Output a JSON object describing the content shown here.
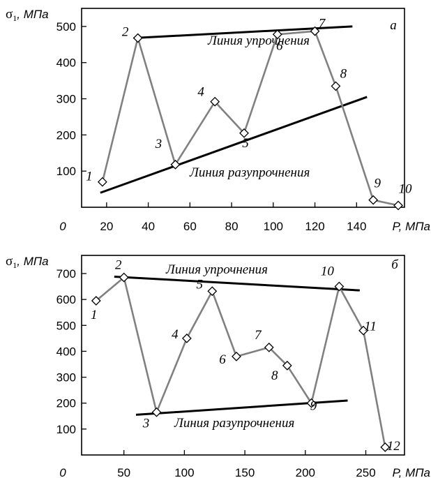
{
  "chart_data": [
    {
      "type": "line",
      "panel_letter": "а",
      "ylabel_symbol": "σ",
      "ylabel_sub": "1",
      "ylabel_unit": ", МПа",
      "xlabel": "P, МПа",
      "origin_label": "0",
      "xlim": [
        8,
        163
      ],
      "ylim": [
        0,
        550
      ],
      "xticks": [
        20,
        40,
        60,
        80,
        100,
        120,
        140
      ],
      "yticks": [
        100,
        200,
        300,
        400,
        500
      ],
      "series": [
        {
          "points": [
            {
              "x": 18,
              "y": 70,
              "label": "1"
            },
            {
              "x": 35,
              "y": 468,
              "label": "2"
            },
            {
              "x": 53,
              "y": 118,
              "label": "3"
            },
            {
              "x": 72,
              "y": 292,
              "label": "4"
            },
            {
              "x": 86,
              "y": 205,
              "label": "5"
            },
            {
              "x": 102,
              "y": 478,
              "label": "6"
            },
            {
              "x": 120,
              "y": 487,
              "label": "7"
            },
            {
              "x": 130,
              "y": 335,
              "label": "8"
            },
            {
              "x": 148,
              "y": 20,
              "label": "9"
            },
            {
              "x": 160,
              "y": 5,
              "label": "10"
            }
          ]
        }
      ],
      "trend_lines": [
        {
          "label": "Линия упрочнения",
          "x1": 33,
          "y1": 468,
          "x2": 138,
          "y2": 500
        },
        {
          "label": "Линия разупрочнения",
          "x1": 17,
          "y1": 40,
          "x2": 145,
          "y2": 305
        }
      ]
    },
    {
      "type": "line",
      "panel_letter": "б",
      "ylabel_symbol": "σ",
      "ylabel_sub": "1",
      "ylabel_unit": ", МПа",
      "xlabel": "P, МПа",
      "origin_label": "0",
      "xlim": [
        15,
        282
      ],
      "ylim": [
        0,
        770
      ],
      "xticks": [
        50,
        100,
        150,
        200,
        250
      ],
      "yticks": [
        100,
        200,
        300,
        400,
        500,
        600,
        700
      ],
      "series": [
        {
          "points": [
            {
              "x": 27,
              "y": 595,
              "label": "1"
            },
            {
              "x": 50,
              "y": 685,
              "label": "2"
            },
            {
              "x": 77,
              "y": 165,
              "label": "3"
            },
            {
              "x": 102,
              "y": 450,
              "label": "4"
            },
            {
              "x": 123,
              "y": 632,
              "label": "5"
            },
            {
              "x": 143,
              "y": 380,
              "label": "6"
            },
            {
              "x": 170,
              "y": 415,
              "label": "7"
            },
            {
              "x": 185,
              "y": 345,
              "label": "8"
            },
            {
              "x": 205,
              "y": 200,
              "label": "9"
            },
            {
              "x": 228,
              "y": 650,
              "label": "10"
            },
            {
              "x": 248,
              "y": 480,
              "label": "11"
            },
            {
              "x": 266,
              "y": 30,
              "label": "12"
            }
          ]
        }
      ],
      "trend_lines": [
        {
          "label": "Линия упрочнения",
          "x1": 42,
          "y1": 688,
          "x2": 245,
          "y2": 635
        },
        {
          "label": "Линия разупрочнения",
          "x1": 60,
          "y1": 155,
          "x2": 235,
          "y2": 210
        }
      ]
    }
  ]
}
